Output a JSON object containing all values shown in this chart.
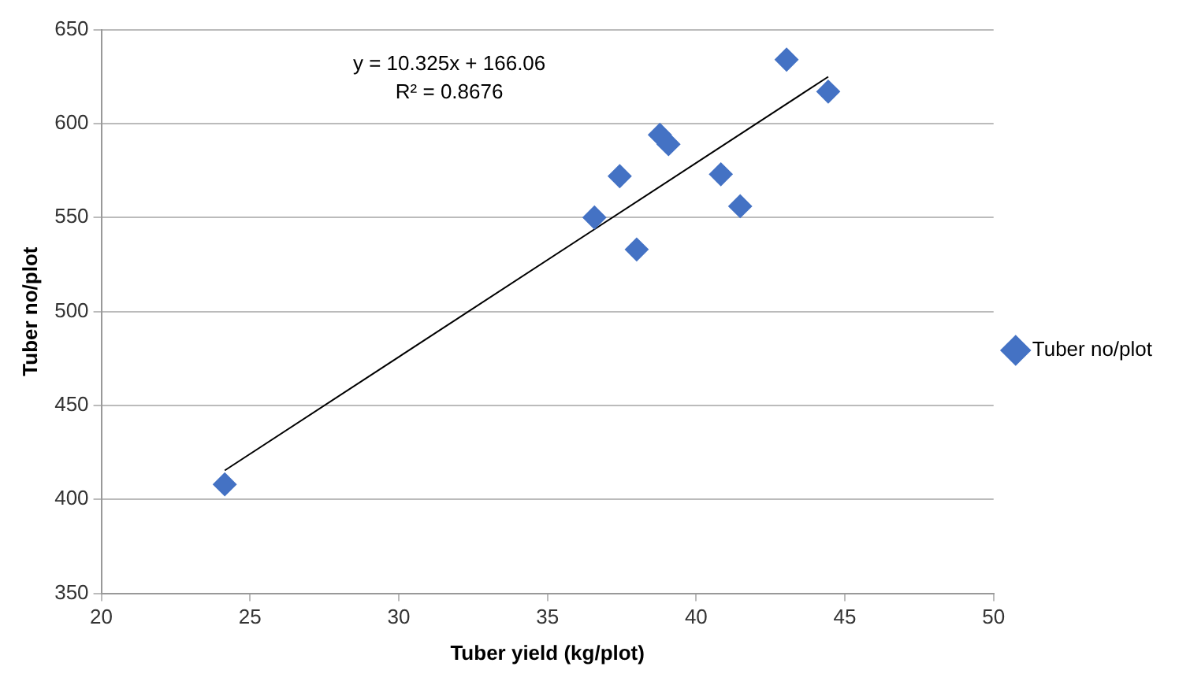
{
  "chart_data": {
    "type": "scatter",
    "xlabel": "Tuber yield (kg/plot)",
    "ylabel": "Tuber no/plot",
    "xlim": [
      20,
      50
    ],
    "xticks": [
      20,
      25,
      30,
      35,
      40,
      45,
      50
    ],
    "ylim": [
      350,
      650
    ],
    "yticks": [
      350,
      400,
      450,
      500,
      550,
      600,
      650
    ],
    "grid": "y",
    "legend": "right",
    "marker": "diamond",
    "series": [
      {
        "name": "Tuber no/plot",
        "color": "#4472c4",
        "x": [
          43.04,
          44.44,
          38.78,
          39.07,
          37.43,
          40.83,
          41.48,
          36.58,
          38.0,
          24.15
        ],
        "values": [
          634,
          617,
          594,
          589,
          572,
          573,
          556,
          550,
          533,
          408
        ]
      },
      {
        "type": "line",
        "color": "#000000",
        "marker": "none",
        "x": [
          24.15,
          44.44
        ],
        "values": [
          415.4,
          624.9
        ]
      }
    ],
    "annotations": [
      "y = 10.325x + 166.06",
      "R² = 0.8676"
    ]
  }
}
